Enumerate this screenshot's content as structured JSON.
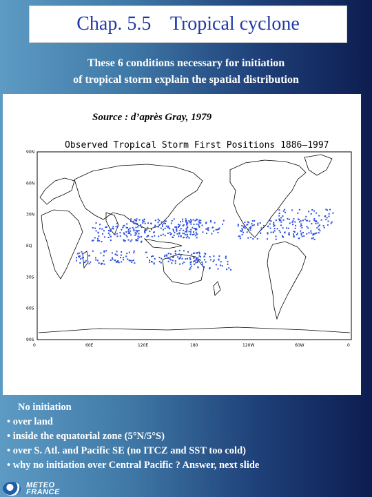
{
  "slide": {
    "title": "Chap. 5.5    Tropical cyclone",
    "intro_line1": "These 6 conditions necessary for initiation",
    "intro_line2": "of tropical storm explain the spatial distribution"
  },
  "figure": {
    "source": "Source : d’après Gray, 1979",
    "map_title": "Observed Tropical Storm First Positions  1886–1997",
    "lat_labels": [
      "90N",
      "60N",
      "30N",
      "EQ",
      "30S",
      "60S",
      "90S"
    ],
    "lon_labels": [
      "0",
      "60E",
      "120E",
      "180",
      "120W",
      "60W",
      "0"
    ],
    "point_color": "#2a4fe0"
  },
  "notes": {
    "lead": "No initiation",
    "items": [
      "• over land",
      "• inside the equatorial zone (5°N/5°S)",
      "• over S. Atl.  and Pacific SE (no ITCZ and SST too cold)",
      "• why no initiation over Central Pacific ? Answer, next slide"
    ]
  },
  "footer": {
    "logo_line1": "METEO",
    "logo_line2": "FRANCE"
  }
}
